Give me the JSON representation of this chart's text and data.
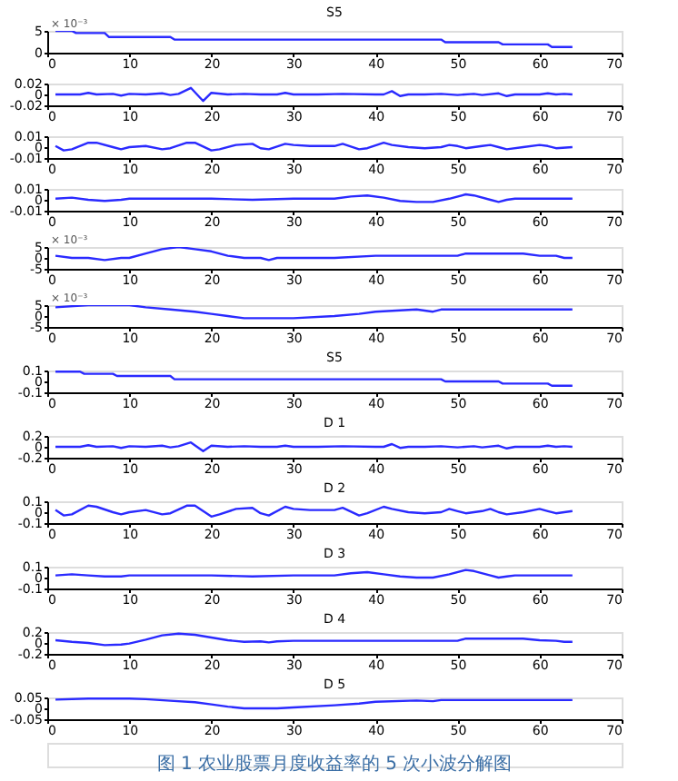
{
  "chart_data": [
    {
      "type": "line",
      "title": "S5",
      "annotations": [
        "× 10⁻³"
      ],
      "xlim": [
        0,
        70
      ],
      "xticks": [
        0,
        10,
        20,
        30,
        40,
        50,
        60,
        70
      ],
      "ylim": [
        0,
        5
      ],
      "yticks": [
        0,
        5
      ],
      "grid": false,
      "line_style": "solid",
      "series": [
        {
          "color": "#2a2aff",
          "x": [
            1,
            3,
            3.5,
            7,
            7.5,
            15,
            15.5,
            48,
            48.5,
            55,
            55.5,
            61,
            61.5,
            64
          ],
          "values": [
            5,
            5,
            4.5,
            4.5,
            3.6,
            3.6,
            3,
            3,
            2.4,
            2.4,
            1.9,
            1.9,
            1.3,
            1.3
          ]
        }
      ]
    },
    {
      "type": "line",
      "xlim": [
        0,
        70
      ],
      "xticks": [
        0,
        10,
        20,
        30,
        40,
        50,
        60,
        70
      ],
      "ylim": [
        -0.02,
        0.02
      ],
      "yticks": [
        -0.02,
        0,
        0.02
      ],
      "grid": false,
      "line_style": "solid",
      "series": [
        {
          "color": "#2a2aff",
          "x": [
            1,
            4,
            5,
            6,
            8,
            9,
            10,
            12,
            14,
            15,
            16,
            17.5,
            19,
            20,
            22,
            24,
            26,
            28,
            29,
            30,
            33,
            36,
            40,
            41,
            42,
            43,
            44,
            46,
            48,
            50,
            52,
            53,
            55,
            56,
            57,
            60,
            61,
            62,
            63,
            64
          ],
          "values": [
            0,
            0,
            0.003,
            0,
            0.001,
            -0.002,
            0.001,
            0,
            0.002,
            -0.001,
            0.001,
            0.012,
            -0.012,
            0.003,
            0,
            0.001,
            0,
            0,
            0.003,
            0,
            0,
            0.001,
            0,
            0,
            0.006,
            -0.003,
            0,
            0,
            0.001,
            -0.001,
            0.001,
            -0.001,
            0.002,
            -0.003,
            0,
            0,
            0.002,
            0,
            0.001,
            0
          ]
        }
      ]
    },
    {
      "type": "line",
      "xlim": [
        0,
        70
      ],
      "xticks": [
        0,
        10,
        20,
        30,
        40,
        50,
        60,
        70
      ],
      "ylim": [
        -0.01,
        0.01
      ],
      "yticks": [
        -0.01,
        0,
        0.01
      ],
      "grid": false,
      "line_style": "solid",
      "series": [
        {
          "color": "#2a2aff",
          "x": [
            1,
            2,
            3,
            5,
            6,
            8,
            9,
            10,
            12,
            14,
            15,
            17,
            18,
            20,
            21,
            23,
            25,
            26,
            27,
            29,
            30,
            32,
            35,
            36,
            38,
            39,
            41,
            42,
            44,
            46,
            48,
            49,
            50,
            51,
            53,
            54,
            55,
            56,
            58,
            60,
            61,
            62,
            64
          ],
          "values": [
            0.001,
            -0.003,
            -0.002,
            0.004,
            0.004,
            0,
            -0.002,
            0,
            0.001,
            -0.002,
            -0.001,
            0.004,
            0.004,
            -0.003,
            -0.002,
            0.002,
            0.003,
            -0.001,
            -0.002,
            0.003,
            0.002,
            0.001,
            0.001,
            0.003,
            -0.002,
            -0.001,
            0.004,
            0.002,
            0,
            -0.001,
            0,
            0.002,
            0.001,
            -0.001,
            0.001,
            0.002,
            0,
            -0.002,
            0,
            0.002,
            0.001,
            -0.001,
            0
          ]
        }
      ]
    },
    {
      "type": "line",
      "xlim": [
        0,
        70
      ],
      "xticks": [
        0,
        10,
        20,
        30,
        40,
        50,
        60,
        70
      ],
      "ylim": [
        -0.01,
        0.01
      ],
      "yticks": [
        -0.01,
        0,
        0.01
      ],
      "grid": false,
      "line_style": "solid",
      "series": [
        {
          "color": "#2a2aff",
          "x": [
            1,
            3,
            5,
            7,
            9,
            10,
            20,
            25,
            30,
            35,
            37,
            39,
            41,
            43,
            45,
            47,
            49,
            51,
            52,
            54,
            55,
            56,
            57,
            64
          ],
          "values": [
            0.001,
            0.002,
            0,
            -0.001,
            0,
            0.001,
            0.001,
            0,
            0.001,
            0.001,
            0.003,
            0.004,
            0.002,
            -0.001,
            -0.002,
            -0.002,
            0.001,
            0.005,
            0.004,
            0,
            -0.002,
            0,
            0.001,
            0.001
          ]
        }
      ]
    },
    {
      "type": "line",
      "annotations": [
        "× 10⁻³"
      ],
      "xlim": [
        0,
        70
      ],
      "xticks": [
        0,
        10,
        20,
        30,
        40,
        50,
        60,
        70
      ],
      "ylim": [
        -5,
        5
      ],
      "yticks": [
        -5,
        0,
        5
      ],
      "grid": false,
      "line_style": "solid",
      "series": [
        {
          "color": "#2a2aff",
          "x": [
            1,
            3,
            5,
            7,
            9,
            10,
            12,
            14,
            16,
            18,
            20,
            22,
            24,
            26,
            27,
            28,
            30,
            35,
            40,
            45,
            50,
            51,
            58,
            60,
            62,
            63,
            64
          ],
          "values": [
            1,
            0,
            0,
            -1,
            0,
            0,
            2,
            4,
            5,
            4,
            3,
            1,
            0,
            0,
            -1,
            0,
            0,
            0,
            1,
            1,
            1,
            2,
            2,
            1,
            1,
            0,
            0
          ]
        }
      ]
    },
    {
      "type": "line",
      "annotations": [
        "× 10⁻³"
      ],
      "xlim": [
        0,
        70
      ],
      "xticks": [
        0,
        10,
        20,
        30,
        40,
        50,
        60,
        70
      ],
      "ylim": [
        -5,
        5
      ],
      "yticks": [
        -5,
        0,
        5
      ],
      "grid": false,
      "line_style": "solid",
      "series": [
        {
          "color": "#2a2aff",
          "x": [
            1,
            5,
            10,
            12,
            15,
            18,
            20,
            22,
            24,
            28,
            30,
            35,
            38,
            40,
            45,
            47,
            48,
            50,
            64
          ],
          "values": [
            4,
            5,
            5,
            4,
            3,
            2,
            1,
            0,
            -1,
            -1,
            -1,
            0,
            1,
            2,
            3,
            2,
            3,
            3,
            3
          ]
        }
      ]
    },
    {
      "type": "line",
      "title": "S5",
      "xlim": [
        0,
        70
      ],
      "xticks": [
        0,
        10,
        20,
        30,
        40,
        50,
        60,
        70
      ],
      "ylim": [
        -0.1,
        0.1
      ],
      "yticks": [
        -0.1,
        0,
        0.1
      ],
      "grid": false,
      "line_style": "solid",
      "series": [
        {
          "color": "#2a2aff",
          "x": [
            1,
            4,
            4.5,
            8,
            8.5,
            15,
            15.5,
            48,
            48.5,
            55,
            55.5,
            61,
            61.5,
            64
          ],
          "values": [
            0.09,
            0.09,
            0.07,
            0.07,
            0.05,
            0.05,
            0.02,
            0.02,
            0,
            0,
            -0.02,
            -0.02,
            -0.04,
            -0.04
          ]
        }
      ]
    },
    {
      "type": "line",
      "title": "D 1",
      "xlim": [
        0,
        70
      ],
      "xticks": [
        0,
        10,
        20,
        30,
        40,
        50,
        60,
        70
      ],
      "ylim": [
        -0.2,
        0.2
      ],
      "yticks": [
        -0.2,
        0,
        0.2
      ],
      "grid": false,
      "line_style": "solid",
      "series": [
        {
          "color": "#2a2aff",
          "x": [
            1,
            4,
            5,
            6,
            8,
            9,
            10,
            12,
            14,
            15,
            16,
            17.5,
            19,
            20,
            22,
            24,
            26,
            28,
            29,
            30,
            33,
            36,
            40,
            41,
            42,
            43,
            44,
            46,
            48,
            50,
            52,
            53,
            55,
            56,
            57,
            60,
            61,
            62,
            63,
            64
          ],
          "values": [
            0,
            0,
            0.03,
            0,
            0.01,
            -0.02,
            0.01,
            0,
            0.02,
            -0.01,
            0.01,
            0.08,
            -0.08,
            0.02,
            0,
            0.01,
            0,
            0,
            0.02,
            0,
            0,
            0.01,
            0,
            0,
            0.05,
            -0.02,
            0,
            0,
            0.01,
            -0.01,
            0.01,
            -0.01,
            0.02,
            -0.03,
            0,
            0,
            0.02,
            0,
            0.01,
            0
          ]
        }
      ]
    },
    {
      "type": "line",
      "title": "D 2",
      "xlim": [
        0,
        70
      ],
      "xticks": [
        0,
        10,
        20,
        30,
        40,
        50,
        60,
        70
      ],
      "ylim": [
        -0.1,
        0.1
      ],
      "yticks": [
        -0.1,
        0,
        0.1
      ],
      "grid": false,
      "line_style": "solid",
      "series": [
        {
          "color": "#2a2aff",
          "x": [
            1,
            2,
            3,
            5,
            6,
            8,
            9,
            10,
            12,
            14,
            15,
            17,
            18,
            20,
            21,
            23,
            25,
            26,
            27,
            29,
            30,
            32,
            35,
            36,
            38,
            39,
            41,
            42,
            44,
            46,
            48,
            49,
            50,
            51,
            53,
            54,
            55,
            56,
            58,
            60,
            61,
            62,
            64
          ],
          "values": [
            0.02,
            -0.03,
            -0.02,
            0.06,
            0.05,
            0,
            -0.02,
            0,
            0.02,
            -0.02,
            -0.01,
            0.06,
            0.06,
            -0.04,
            -0.02,
            0.03,
            0.04,
            -0.01,
            -0.03,
            0.05,
            0.03,
            0.02,
            0.02,
            0.04,
            -0.03,
            -0.01,
            0.05,
            0.03,
            0,
            -0.01,
            0,
            0.03,
            0.01,
            -0.01,
            0.01,
            0.03,
            0,
            -0.02,
            0,
            0.03,
            0.01,
            -0.01,
            0.01
          ]
        }
      ]
    },
    {
      "type": "line",
      "title": "D 3",
      "xlim": [
        0,
        70
      ],
      "xticks": [
        0,
        10,
        20,
        30,
        40,
        50,
        60,
        70
      ],
      "ylim": [
        -0.1,
        0.1
      ],
      "yticks": [
        -0.1,
        0,
        0.1
      ],
      "grid": false,
      "line_style": "solid",
      "series": [
        {
          "color": "#2a2aff",
          "x": [
            1,
            3,
            5,
            7,
            9,
            10,
            20,
            25,
            30,
            35,
            37,
            39,
            41,
            43,
            45,
            47,
            49,
            51,
            52,
            54,
            55,
            56,
            57,
            64
          ],
          "values": [
            0.02,
            0.03,
            0.02,
            0.01,
            0.01,
            0.02,
            0.02,
            0.01,
            0.02,
            0.02,
            0.04,
            0.05,
            0.03,
            0.01,
            0,
            0,
            0.03,
            0.07,
            0.06,
            0.02,
            0,
            0.01,
            0.02,
            0.02
          ]
        }
      ]
    },
    {
      "type": "line",
      "title": "D 4",
      "xlim": [
        0,
        70
      ],
      "xticks": [
        0,
        10,
        20,
        30,
        40,
        50,
        60,
        70
      ],
      "ylim": [
        -0.2,
        0.2
      ],
      "yticks": [
        -0.2,
        0,
        0.2
      ],
      "grid": false,
      "line_style": "solid",
      "series": [
        {
          "color": "#2a2aff",
          "x": [
            1,
            3,
            5,
            7,
            9,
            10,
            12,
            14,
            16,
            18,
            20,
            22,
            24,
            26,
            27,
            28,
            30,
            35,
            40,
            45,
            50,
            51,
            58,
            60,
            62,
            63,
            64
          ],
          "values": [
            0.05,
            0.02,
            0,
            -0.04,
            -0.03,
            -0.01,
            0.06,
            0.14,
            0.17,
            0.15,
            0.1,
            0.05,
            0.02,
            0.03,
            0.01,
            0.03,
            0.04,
            0.04,
            0.04,
            0.04,
            0.04,
            0.08,
            0.08,
            0.05,
            0.04,
            0.02,
            0.02
          ]
        }
      ]
    },
    {
      "type": "line",
      "title": "D 5",
      "xlim": [
        0,
        70
      ],
      "xticks": [
        0,
        10,
        20,
        30,
        40,
        50,
        60,
        70
      ],
      "ylim": [
        -0.05,
        0.05
      ],
      "yticks": [
        -0.05,
        0,
        0.05
      ],
      "grid": false,
      "line_style": "solid",
      "series": [
        {
          "color": "#2a2aff",
          "x": [
            1,
            5,
            10,
            12,
            15,
            18,
            20,
            22,
            24,
            28,
            30,
            35,
            38,
            40,
            45,
            47,
            48,
            50,
            64
          ],
          "values": [
            0.04,
            0.045,
            0.045,
            0.042,
            0.035,
            0.028,
            0.018,
            0.008,
            0,
            0,
            0.004,
            0.014,
            0.022,
            0.03,
            0.036,
            0.033,
            0.038,
            0.038,
            0.038
          ]
        }
      ]
    },
    {
      "type": "other",
      "annotations": [
        "图 1   农业股票月度收益率的 5 次小波分解图"
      ]
    }
  ]
}
